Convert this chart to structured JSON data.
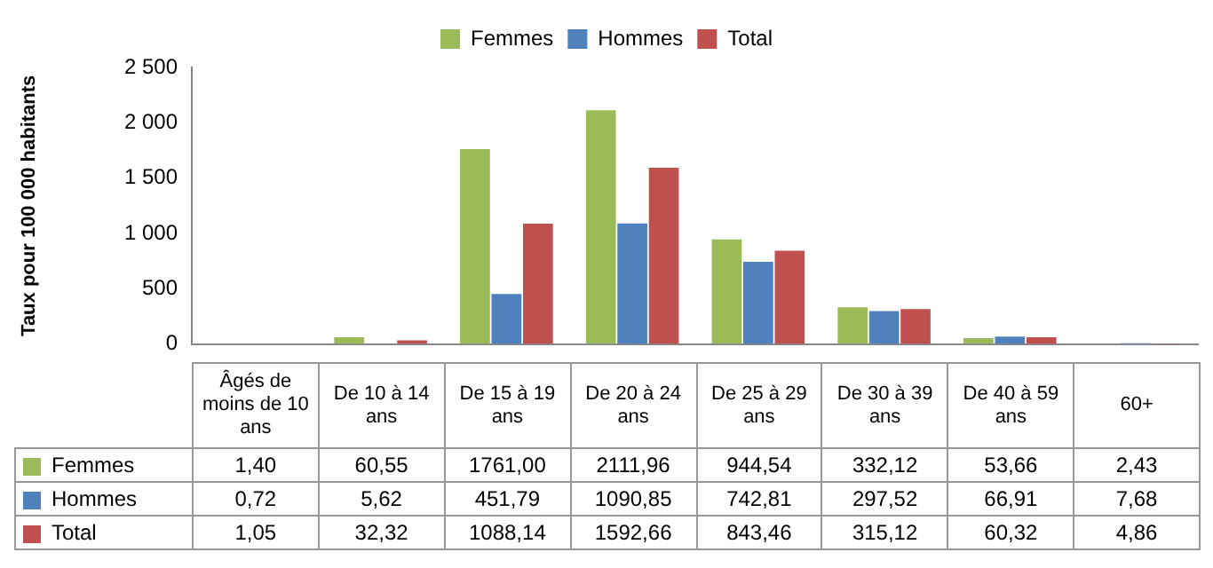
{
  "chart_data": {
    "type": "bar",
    "ylabel": "Taux pour 100 000 habitants",
    "categories": [
      "Âgés de moins de 10 ans",
      "De 10 à 14 ans",
      "De 15 à 19 ans",
      "De 20 à 24 ans",
      "De 25 à 29 ans",
      "De 30 à 39 ans",
      "De 40 à 59 ans",
      "60+"
    ],
    "series": [
      {
        "name": "Femmes",
        "color": "#9bbb59",
        "values": [
          1.4,
          60.55,
          1761.0,
          2111.96,
          944.54,
          332.12,
          53.66,
          2.43
        ],
        "value_labels": [
          "1,40",
          "60,55",
          "1761,00",
          "2111,96",
          "944,54",
          "332,12",
          "53,66",
          "2,43"
        ]
      },
      {
        "name": "Hommes",
        "color": "#4f81bd",
        "values": [
          0.72,
          5.62,
          451.79,
          1090.85,
          742.81,
          297.52,
          66.91,
          7.68
        ],
        "value_labels": [
          "0,72",
          "5,62",
          "451,79",
          "1090,85",
          "742,81",
          "297,52",
          "66,91",
          "7,68"
        ]
      },
      {
        "name": "Total",
        "color": "#c0504d",
        "values": [
          1.05,
          32.32,
          1088.14,
          1592.66,
          843.46,
          315.12,
          60.32,
          4.86
        ],
        "value_labels": [
          "1,05",
          "32,32",
          "1088,14",
          "1592,66",
          "843,46",
          "315,12",
          "60,32",
          "4,86"
        ]
      }
    ],
    "ylim": [
      0,
      2500
    ],
    "yticks": [
      0,
      500,
      {
        "value": 1000,
        "label": "1 000"
      },
      {
        "value": 1500,
        "label": "1 500"
      },
      {
        "value": 2000,
        "label": "2 000"
      },
      {
        "value": 2500,
        "label": "2 500"
      }
    ],
    "legend": "top"
  }
}
